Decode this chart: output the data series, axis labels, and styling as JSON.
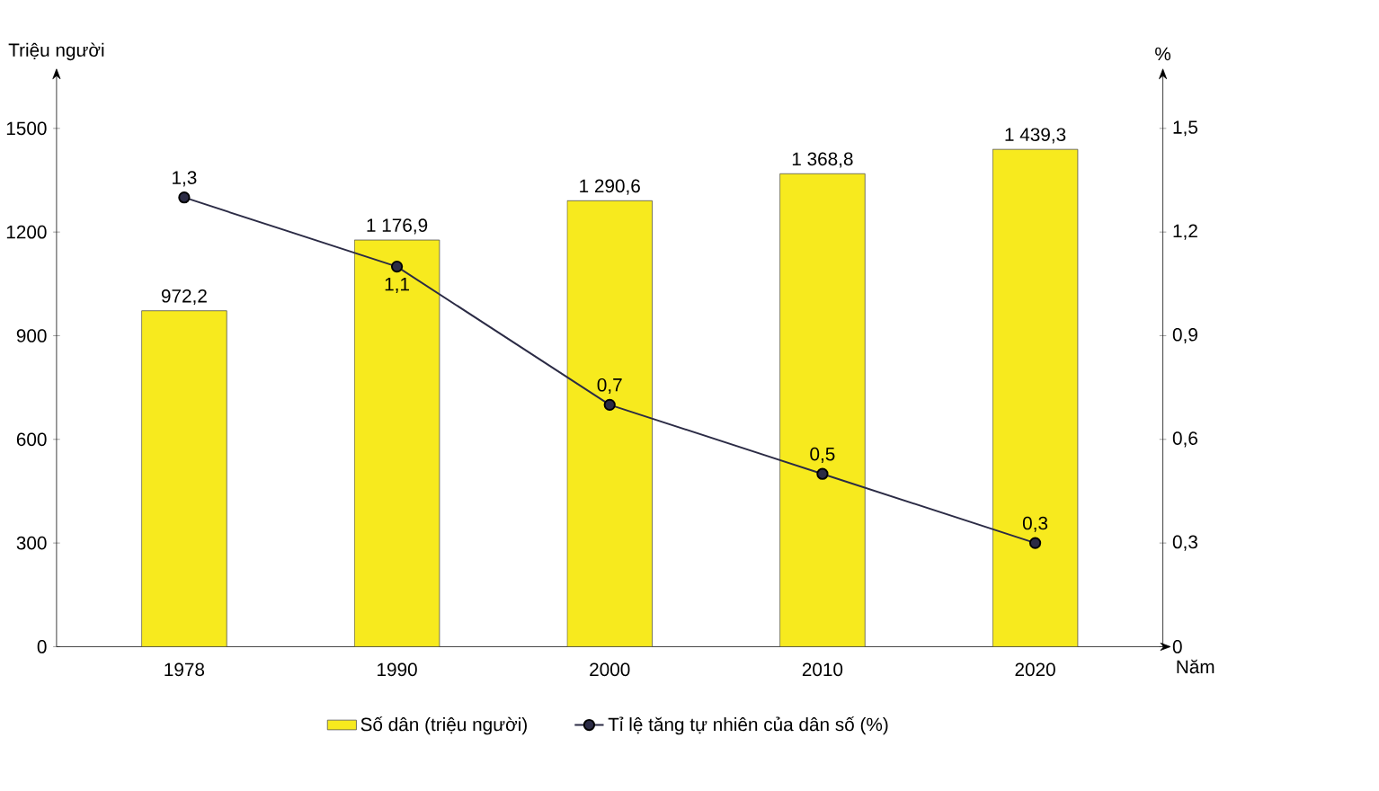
{
  "chart_data": {
    "type": "bar",
    "xlabel": "Năm",
    "ylabel": "Triệu người",
    "y2label": "%",
    "categories": [
      "1978",
      "1990",
      "2000",
      "2010",
      "2020"
    ],
    "series": [
      {
        "name": "Số dân (triệu người)",
        "color": "#f7ea1e",
        "values": [
          972.2,
          1176.9,
          1290.6,
          1368.8,
          1439.3
        ],
        "value_labels": [
          "972,2",
          "1 176,9",
          "1 290,6",
          "1 368,8",
          "1 439,3"
        ]
      },
      {
        "name": "Tỉ lệ tăng tự nhiên của dân số (%)",
        "type": "line",
        "axis": "y2",
        "color": "#2b2b45",
        "values": [
          1.3,
          1.1,
          0.7,
          0.5,
          0.3
        ],
        "value_labels": [
          "1,3",
          "1,1",
          "0,7",
          "0,5",
          "0,3"
        ]
      }
    ],
    "ylim": [
      0,
      1650
    ],
    "yticks": [
      0,
      300,
      600,
      900,
      1200,
      1500
    ],
    "y2lim": [
      0,
      1.65
    ],
    "y2ticks": [
      {
        "value": 0,
        "label": "0"
      },
      {
        "value": 0.3,
        "label": "0,3"
      },
      {
        "value": 0.6,
        "label": "0,6"
      },
      {
        "value": 0.9,
        "label": "0,9"
      },
      {
        "value": 1.2,
        "label": "1,2"
      },
      {
        "value": 1.5,
        "label": "1,5"
      }
    ],
    "marker": "circle",
    "line_style": "solid",
    "legend": "bottom"
  }
}
